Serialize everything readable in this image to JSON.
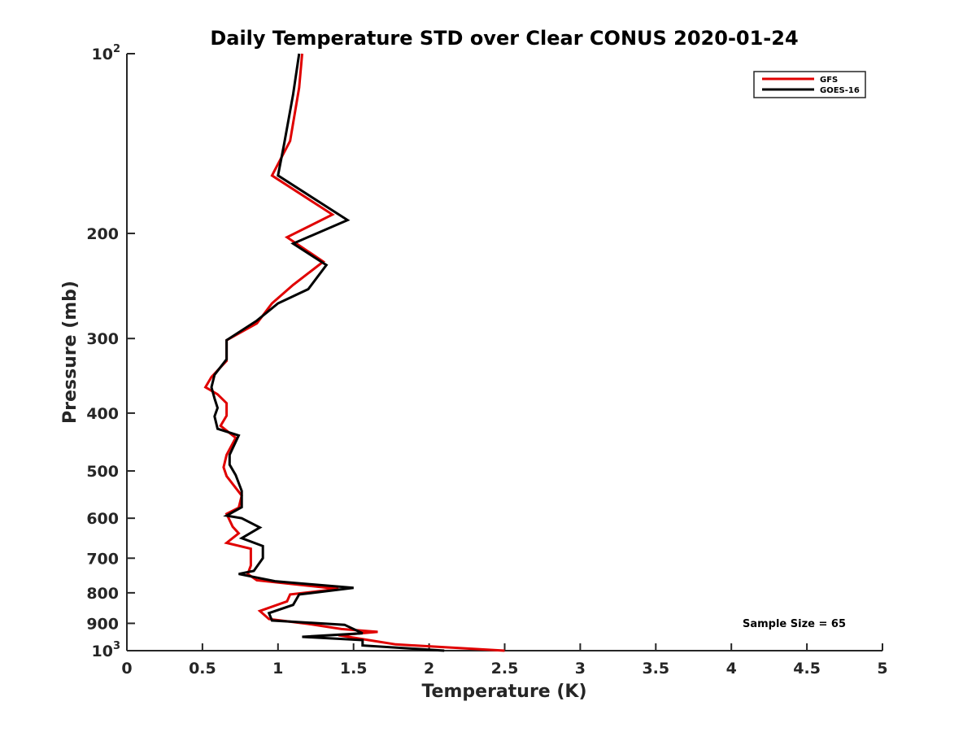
{
  "chart_data": {
    "type": "line",
    "title": "Daily Temperature STD over Clear CONUS 2020-01-24",
    "xlabel": "Temperature (K)",
    "ylabel": "Pressure (mb)",
    "xlim": [
      0,
      5
    ],
    "ylim": [
      100,
      1000
    ],
    "yscale": "log",
    "yreversed": true,
    "grid": false,
    "legend_position": "top-right",
    "x_ticks": [
      {
        "value": 0,
        "label": "0"
      },
      {
        "value": 0.5,
        "label": "0.5"
      },
      {
        "value": 1,
        "label": "1"
      },
      {
        "value": 1.5,
        "label": "1.5"
      },
      {
        "value": 2,
        "label": "2"
      },
      {
        "value": 2.5,
        "label": "2.5"
      },
      {
        "value": 3,
        "label": "3"
      },
      {
        "value": 3.5,
        "label": "3.5"
      },
      {
        "value": 4,
        "label": "4"
      },
      {
        "value": 4.5,
        "label": "4.5"
      },
      {
        "value": 5,
        "label": "5"
      }
    ],
    "y_ticks": [
      {
        "value": 100,
        "label": "10",
        "sup": "2"
      },
      {
        "value": 200,
        "label": "200"
      },
      {
        "value": 300,
        "label": "300"
      },
      {
        "value": 400,
        "label": "400"
      },
      {
        "value": 500,
        "label": "500"
      },
      {
        "value": 600,
        "label": "600"
      },
      {
        "value": 700,
        "label": "700"
      },
      {
        "value": 800,
        "label": "800"
      },
      {
        "value": 900,
        "label": "900"
      },
      {
        "value": 1000,
        "label": "10",
        "sup": "3"
      }
    ],
    "annotation": "Sample Size = 65",
    "series": [
      {
        "name": "GFS",
        "color": "#e00000",
        "points": [
          [
            1.16,
            100
          ],
          [
            1.14,
            114
          ],
          [
            1.08,
            140
          ],
          [
            0.96,
            160
          ],
          [
            1.36,
            186
          ],
          [
            1.06,
            203
          ],
          [
            1.3,
            223
          ],
          [
            1.1,
            244
          ],
          [
            0.96,
            262
          ],
          [
            0.86,
            283
          ],
          [
            0.66,
            302
          ],
          [
            0.66,
            327
          ],
          [
            0.56,
            348
          ],
          [
            0.52,
            362
          ],
          [
            0.6,
            372
          ],
          [
            0.66,
            385
          ],
          [
            0.66,
            404
          ],
          [
            0.62,
            420
          ],
          [
            0.72,
            440
          ],
          [
            0.66,
            470
          ],
          [
            0.64,
            493
          ],
          [
            0.66,
            510
          ],
          [
            0.76,
            550
          ],
          [
            0.74,
            576
          ],
          [
            0.66,
            590
          ],
          [
            0.7,
            620
          ],
          [
            0.74,
            636
          ],
          [
            0.66,
            660
          ],
          [
            0.82,
            675
          ],
          [
            0.82,
            720
          ],
          [
            0.8,
            744
          ],
          [
            0.86,
            762
          ],
          [
            1.4,
            788
          ],
          [
            1.08,
            805
          ],
          [
            1.06,
            827
          ],
          [
            0.88,
            858
          ],
          [
            0.94,
            885
          ],
          [
            1.2,
            902
          ],
          [
            1.42,
            920
          ],
          [
            1.66,
            930
          ],
          [
            1.4,
            942
          ],
          [
            1.6,
            960
          ],
          [
            1.78,
            976
          ],
          [
            2.5,
            1000
          ]
        ]
      },
      {
        "name": "GOES-16",
        "color": "#000000",
        "points": [
          [
            1.14,
            100
          ],
          [
            1.1,
            117
          ],
          [
            1.04,
            142
          ],
          [
            1.0,
            160
          ],
          [
            1.46,
            190
          ],
          [
            1.1,
            208
          ],
          [
            1.32,
            226
          ],
          [
            1.2,
            248
          ],
          [
            1.0,
            262
          ],
          [
            0.86,
            280
          ],
          [
            0.66,
            302
          ],
          [
            0.66,
            325
          ],
          [
            0.58,
            345
          ],
          [
            0.56,
            362
          ],
          [
            0.58,
            378
          ],
          [
            0.6,
            392
          ],
          [
            0.58,
            405
          ],
          [
            0.6,
            425
          ],
          [
            0.74,
            436
          ],
          [
            0.68,
            470
          ],
          [
            0.68,
            488
          ],
          [
            0.72,
            508
          ],
          [
            0.76,
            540
          ],
          [
            0.76,
            575
          ],
          [
            0.66,
            594
          ],
          [
            0.76,
            600
          ],
          [
            0.88,
            622
          ],
          [
            0.76,
            648
          ],
          [
            0.9,
            668
          ],
          [
            0.9,
            700
          ],
          [
            0.84,
            735
          ],
          [
            0.74,
            744
          ],
          [
            0.98,
            765
          ],
          [
            1.5,
            785
          ],
          [
            1.14,
            805
          ],
          [
            1.1,
            838
          ],
          [
            0.94,
            865
          ],
          [
            0.96,
            890
          ],
          [
            1.44,
            905
          ],
          [
            1.56,
            935
          ],
          [
            1.16,
            948
          ],
          [
            1.56,
            960
          ],
          [
            1.56,
            980
          ],
          [
            2.1,
            1000
          ]
        ]
      }
    ]
  }
}
